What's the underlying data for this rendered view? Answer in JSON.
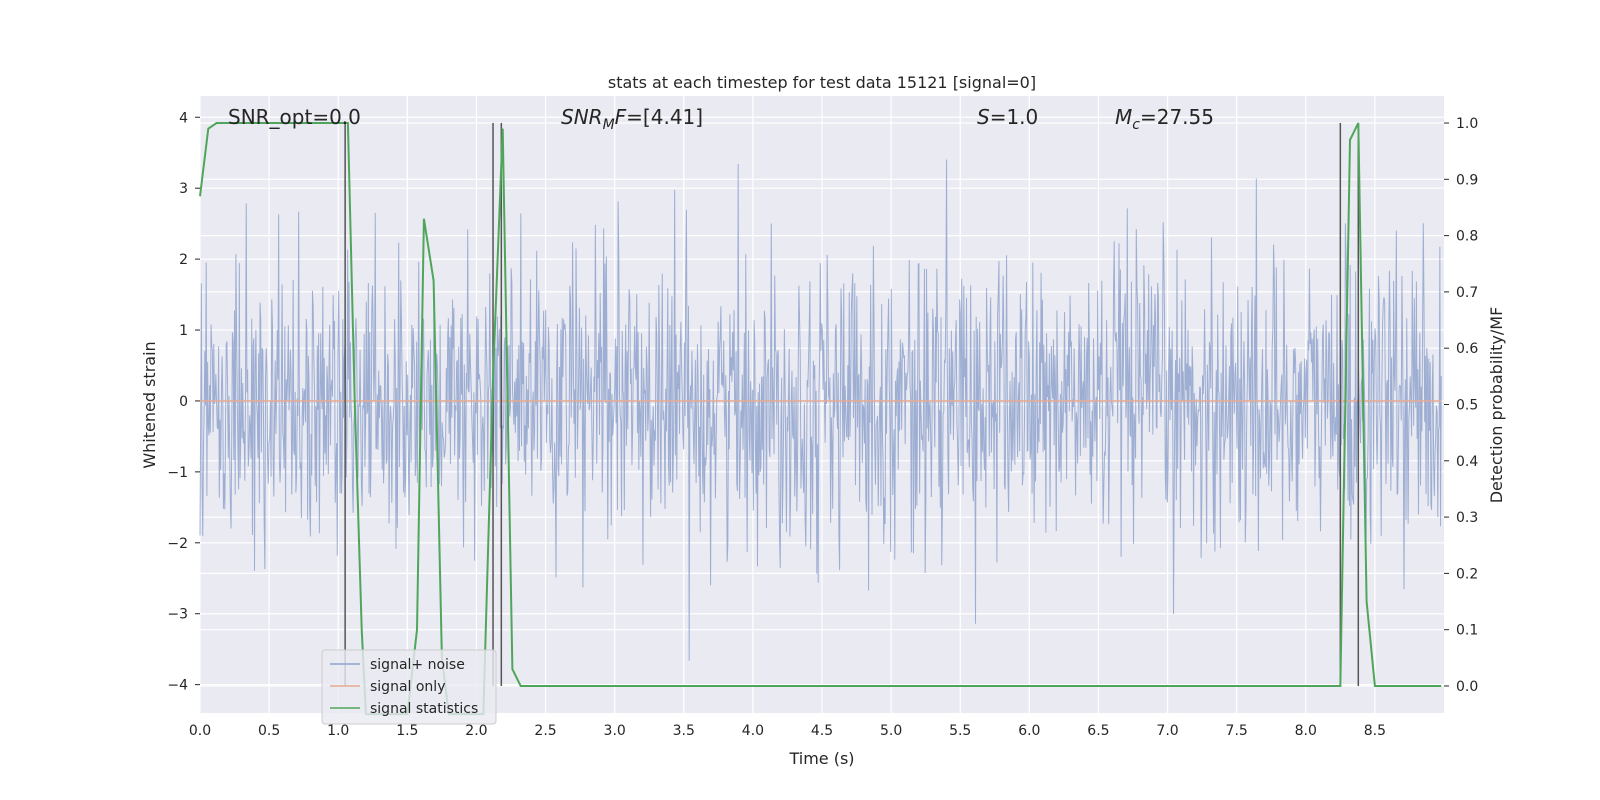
{
  "chart_data": {
    "type": "line",
    "title": "stats at each timestep for test data 15121 [signal=0]",
    "xlabel": "Time (s)",
    "ylabel": "Whitened strain",
    "y2label": "Detection probability/MF",
    "xlim": [
      0.0,
      9.0
    ],
    "ylim": [
      -4.4,
      4.3
    ],
    "y2lim": [
      -0.048,
      1.048
    ],
    "xticks": [
      "0.0",
      "0.5",
      "1.0",
      "1.5",
      "2.0",
      "2.5",
      "3.0",
      "3.5",
      "4.0",
      "4.5",
      "5.0",
      "5.5",
      "6.0",
      "6.5",
      "7.0",
      "7.5",
      "8.0",
      "8.5"
    ],
    "yticks": [
      "4",
      "3",
      "2",
      "1",
      "0",
      "−1",
      "−2",
      "−3",
      "−4"
    ],
    "y2ticks": [
      "1.0",
      "0.9",
      "0.8",
      "0.7",
      "0.6",
      "0.5",
      "0.4",
      "0.3",
      "0.2",
      "0.1",
      "0.0"
    ],
    "grid": true,
    "legend_position": "lower-left",
    "annotations": {
      "snr_opt": "SNR_opt=0.0",
      "snr_mf_var": "SNR",
      "snr_mf_sub": "M",
      "snr_mf_rest": "F",
      "snr_mf_val": "=[4.41]",
      "s_var": "S",
      "s_val": "=1.0",
      "mc_var": "M",
      "mc_sub": "c",
      "mc_val": "=27.55"
    },
    "series": [
      {
        "name": "signal+ noise",
        "color": "#8fa3cd",
        "axis": "left",
        "description_stats": {
          "mean": 0.0,
          "std": 1.0,
          "points": 1800,
          "min": -4.0,
          "max": 3.9
        }
      },
      {
        "name": "signal only",
        "color": "#e8a990",
        "axis": "left",
        "values": [
          0.0,
          0.0
        ]
      },
      {
        "name": "signal statistics",
        "color": "#4fa65b",
        "axis": "right",
        "x": [
          0.0,
          0.06,
          0.12,
          0.2,
          0.6,
          1.0,
          1.07,
          1.12,
          1.17,
          1.2,
          1.5,
          1.57,
          1.62,
          1.69,
          1.75,
          1.8,
          2.05,
          2.12,
          2.19,
          2.26,
          2.32,
          2.5,
          5.0,
          8.25,
          8.32,
          8.38,
          8.44,
          8.5,
          8.98
        ],
        "y": [
          0.87,
          0.99,
          1.0,
          1.0,
          1.0,
          1.0,
          1.0,
          0.5,
          0.1,
          -0.05,
          -0.05,
          0.1,
          0.83,
          0.72,
          0.05,
          -0.05,
          -0.05,
          0.55,
          0.99,
          0.03,
          0.0,
          0.0,
          0.0,
          0.0,
          0.97,
          1.0,
          0.15,
          0.0,
          0.0
        ]
      }
    ],
    "vlines": [
      1.05,
      2.12,
      2.18,
      8.25,
      8.38
    ],
    "vline_color": "#555555"
  }
}
